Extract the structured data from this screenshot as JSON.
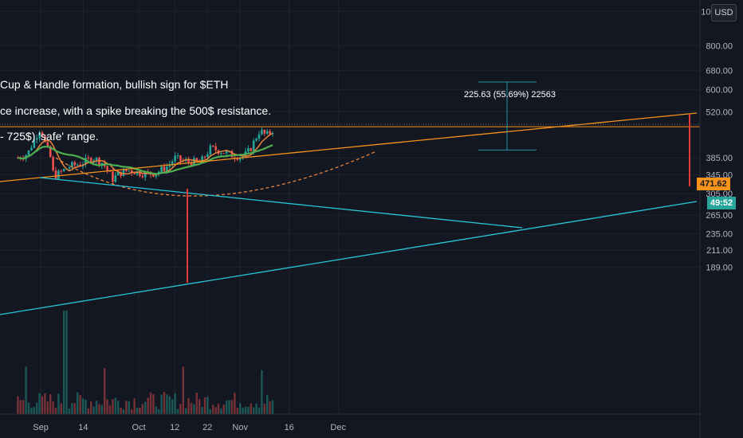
{
  "currency_button": "USD",
  "annotations": [
    "Cup & Handle formation, bullish sign for $ETH",
    "ce increase, with a spike breaking the 500$ resistance.",
    " - 725$) 'safe' range."
  ],
  "measure_label": "225.63 (55.69%) 22563",
  "price_tag": "471.62",
  "countdown_tag": "49:52",
  "colors": {
    "background": "#131722",
    "candle_up": "#26a69a",
    "candle_down": "#ef5350",
    "ma_fast": "#e8833a",
    "ma_slow": "#4caf50",
    "orange_line": "#f7931a",
    "teal_line": "#26c6da",
    "red_marker": "#e53935"
  },
  "chart_data": {
    "type": "candlestick",
    "instrument": "ETH/USD",
    "price_scale": "log",
    "y_ticks": [
      "1000.00",
      "800.00",
      "680.00",
      "600.00",
      "520.00",
      "385.00",
      "345.00",
      "305.00",
      "265.00",
      "235.00",
      "211.00",
      "189.00"
    ],
    "x_ticks": [
      "Sep",
      "14",
      "Oct",
      "12",
      "22",
      "Nov",
      "16",
      "Dec"
    ],
    "last_price": 471.62,
    "measured_move": {
      "from": 405.2,
      "to": 630.8,
      "change": 225.63,
      "percent": 55.69
    },
    "close_path": [
      [
        "2020-08-25",
        385
      ],
      [
        "2020-08-28",
        395
      ],
      [
        "2020-09-01",
        470
      ],
      [
        "2020-09-02",
        430
      ],
      [
        "2020-09-04",
        385
      ],
      [
        "2020-09-05",
        340
      ],
      [
        "2020-09-08",
        355
      ],
      [
        "2020-09-10",
        365
      ],
      [
        "2020-09-13",
        370
      ],
      [
        "2020-09-17",
        385
      ],
      [
        "2020-09-20",
        372
      ],
      [
        "2020-09-23",
        335
      ],
      [
        "2020-09-25",
        348
      ],
      [
        "2020-09-28",
        355
      ],
      [
        "2020-10-02",
        348
      ],
      [
        "2020-10-06",
        348
      ],
      [
        "2020-10-10",
        365
      ],
      [
        "2020-10-12",
        385
      ],
      [
        "2020-10-15",
        375
      ],
      [
        "2020-10-20",
        375
      ],
      [
        "2020-10-23",
        410
      ],
      [
        "2020-10-27",
        400
      ],
      [
        "2020-10-30",
        390
      ],
      [
        "2020-11-02",
        388
      ],
      [
        "2020-11-04",
        405
      ],
      [
        "2020-11-07",
        460
      ],
      [
        "2020-11-09",
        445
      ],
      [
        "2020-11-11",
        462
      ]
    ]
  }
}
